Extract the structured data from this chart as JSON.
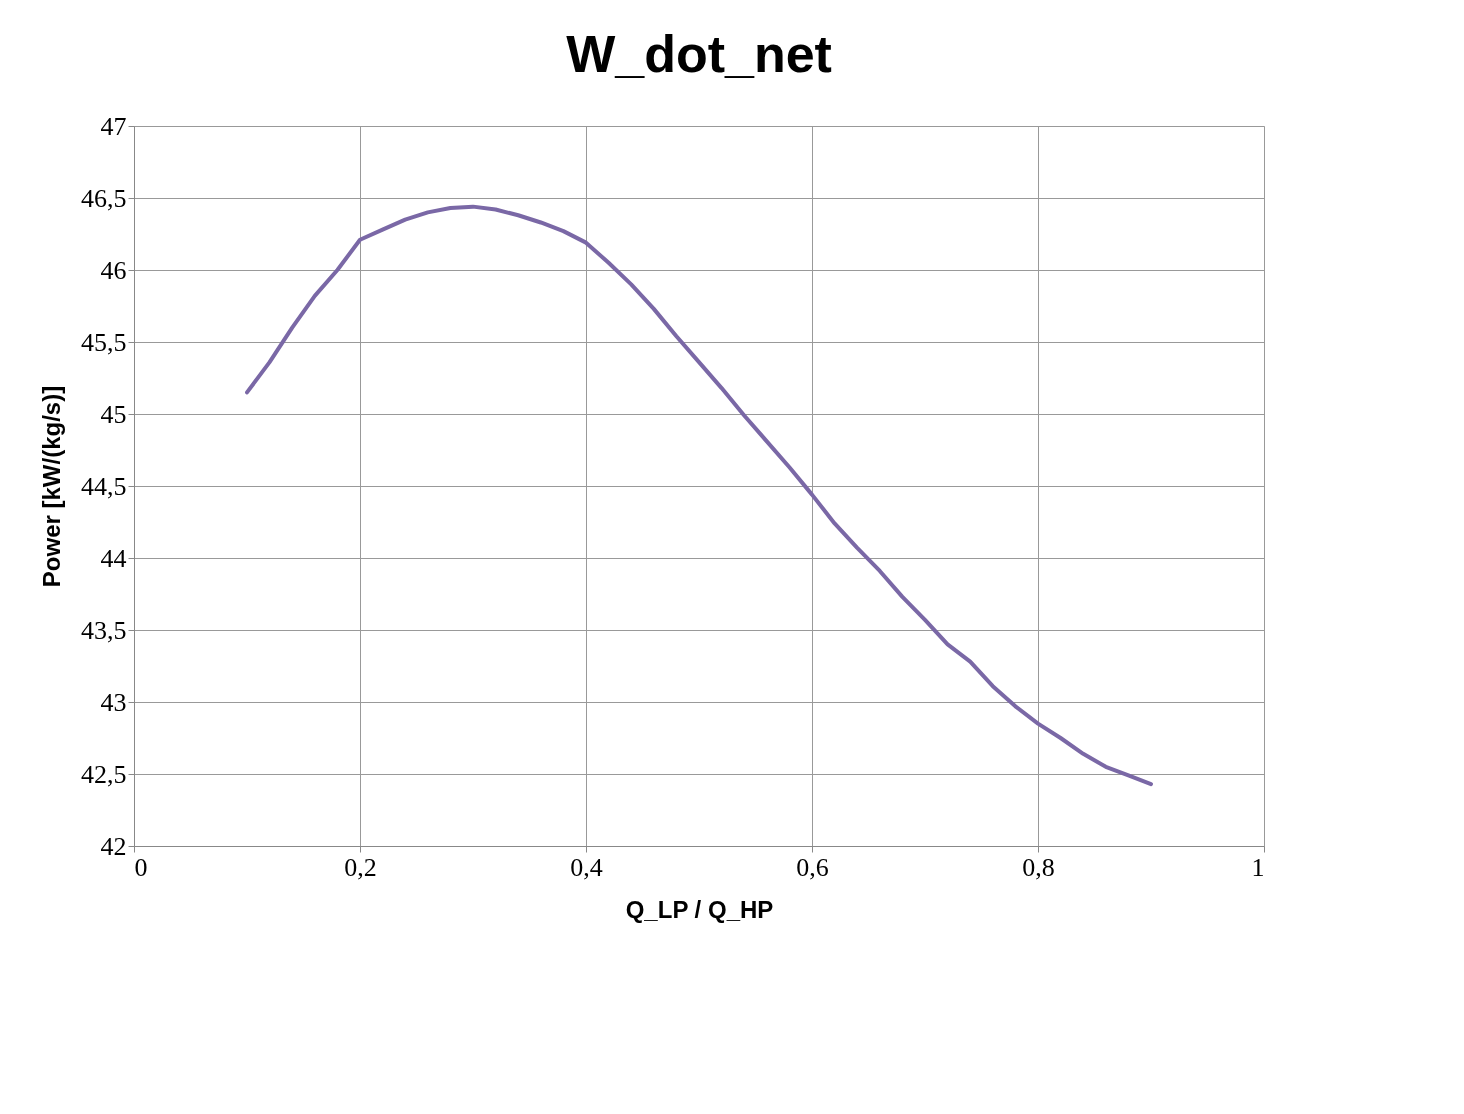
{
  "chart_data": {
    "type": "line",
    "title": "W_dot_net",
    "xlabel": "Q_LP / Q_HP",
    "ylabel": "Power [kW/(kg/s)]",
    "x": [
      0.1,
      0.12,
      0.14,
      0.16,
      0.18,
      0.2,
      0.22,
      0.24,
      0.26,
      0.28,
      0.3,
      0.32,
      0.34,
      0.36,
      0.38,
      0.4,
      0.42,
      0.44,
      0.46,
      0.48,
      0.5,
      0.52,
      0.54,
      0.56,
      0.58,
      0.6,
      0.62,
      0.64,
      0.66,
      0.68,
      0.7,
      0.72,
      0.74,
      0.76,
      0.78,
      0.8,
      0.82,
      0.84,
      0.86,
      0.88,
      0.9
    ],
    "series": [
      {
        "color": "#7a68a6",
        "values": [
          45.15,
          45.36,
          45.6,
          45.82,
          46.0,
          46.21,
          46.28,
          46.35,
          46.4,
          46.43,
          46.44,
          46.42,
          46.38,
          46.33,
          46.27,
          46.19,
          46.05,
          45.9,
          45.73,
          45.54,
          45.36,
          45.18,
          44.99,
          44.81,
          44.63,
          44.44,
          44.24,
          44.07,
          43.91,
          43.73,
          43.57,
          43.4,
          43.28,
          43.11,
          42.97,
          42.85,
          42.75,
          42.64,
          42.55,
          42.49,
          42.43
        ]
      }
    ],
    "xlim": [
      0,
      1
    ],
    "xticks": [
      0,
      {
        "value": 0.2,
        "label": "0,2"
      },
      {
        "value": 0.4,
        "label": "0,4"
      },
      {
        "value": 0.6,
        "label": "0,6"
      },
      {
        "value": 0.8,
        "label": "0,8"
      },
      1
    ],
    "ylim": [
      42,
      47
    ],
    "yticks": [
      42,
      {
        "value": 42.5,
        "label": "42,5"
      },
      43,
      {
        "value": 43.5,
        "label": "43,5"
      },
      44,
      {
        "value": 44.5,
        "label": "44,5"
      },
      45,
      {
        "value": 45.5,
        "label": "45,5"
      },
      46,
      {
        "value": 46.5,
        "label": "46,5"
      },
      47
    ],
    "grid": true,
    "marker": "none",
    "line_style": "solid"
  }
}
